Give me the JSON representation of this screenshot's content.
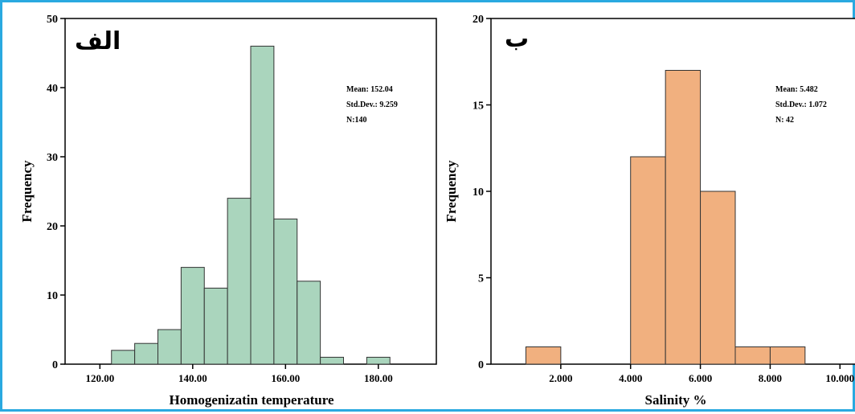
{
  "colors": {
    "frame": "#2aa9e0",
    "bar_a": "#aad5bd",
    "bar_b": "#f1b07f",
    "edge": "#333333"
  },
  "chart_data": [
    {
      "type": "bar",
      "panel_label": "الف",
      "xlabel": "Homogenizatin temperature",
      "ylabel": "Frequency",
      "xlim": [
        112.5,
        192.5
      ],
      "ylim": [
        0,
        50
      ],
      "bin_width": 5,
      "bins": [
        {
          "center": 125,
          "value": 2
        },
        {
          "center": 130,
          "value": 3
        },
        {
          "center": 135,
          "value": 5
        },
        {
          "center": 140,
          "value": 14
        },
        {
          "center": 145,
          "value": 11
        },
        {
          "center": 150,
          "value": 24
        },
        {
          "center": 155,
          "value": 46
        },
        {
          "center": 160,
          "value": 21
        },
        {
          "center": 165,
          "value": 12
        },
        {
          "center": 170,
          "value": 1
        },
        {
          "center": 175,
          "value": 0
        },
        {
          "center": 180,
          "value": 1
        }
      ],
      "xticks": [
        {
          "value": 120,
          "label": "120.00"
        },
        {
          "value": 140,
          "label": "140.00"
        },
        {
          "value": 160,
          "label": "160.00"
        },
        {
          "value": 180,
          "label": "180.00"
        }
      ],
      "yticks": [
        {
          "value": 0,
          "label": "0"
        },
        {
          "value": 10,
          "label": "10"
        },
        {
          "value": 20,
          "label": "20"
        },
        {
          "value": 30,
          "label": "30"
        },
        {
          "value": 40,
          "label": "40"
        },
        {
          "value": 50,
          "label": "50"
        }
      ],
      "stats": [
        "Mean: 152.04",
        "Std.Dev.: 9.259",
        "N:140"
      ]
    },
    {
      "type": "bar",
      "panel_label": "ب",
      "xlabel": "Salinity %",
      "ylabel": "Frequency",
      "xlim": [
        0,
        10.5
      ],
      "ylim": [
        0,
        20
      ],
      "bin_width": 1,
      "bins": [
        {
          "center": 1.5,
          "value": 1
        },
        {
          "center": 2.5,
          "value": 0
        },
        {
          "center": 3.5,
          "value": 0
        },
        {
          "center": 4.5,
          "value": 12
        },
        {
          "center": 5.5,
          "value": 17
        },
        {
          "center": 6.5,
          "value": 10
        },
        {
          "center": 7.5,
          "value": 1
        },
        {
          "center": 8.5,
          "value": 1
        }
      ],
      "xticks": [
        {
          "value": 2,
          "label": "2.000"
        },
        {
          "value": 4,
          "label": "4.000"
        },
        {
          "value": 6,
          "label": "6.000"
        },
        {
          "value": 8,
          "label": "8.000"
        },
        {
          "value": 10,
          "label": "10.000"
        }
      ],
      "yticks": [
        {
          "value": 0,
          "label": "0"
        },
        {
          "value": 5,
          "label": "5"
        },
        {
          "value": 10,
          "label": "10"
        },
        {
          "value": 15,
          "label": "15"
        },
        {
          "value": 20,
          "label": "20"
        }
      ],
      "stats": [
        "Mean: 5.482",
        "Std.Dev.: 1.072",
        "N: 42"
      ]
    }
  ]
}
